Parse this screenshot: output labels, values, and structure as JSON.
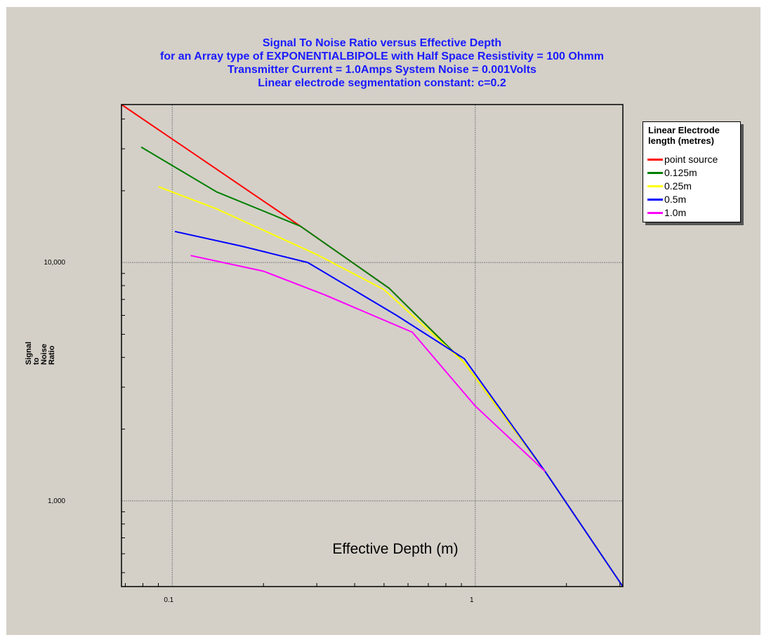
{
  "title_lines": [
    "Signal To Noise Ratio versus Effective Depth",
    "for an Array type of EXPONENTIALBIPOLE  with Half Space Resistivity = 100 Ohmm",
    "Transmitter Current = 1.0Amps  System Noise = 0.001Volts",
    "Linear electrode segmentation constant: c=0.2"
  ],
  "colors": {
    "title": "#1a1aff",
    "background": "#d4d0c8"
  },
  "chart_data": {
    "type": "line",
    "title": "Signal To Noise Ratio versus Effective Depth for an Array type of EXPONENTIALBIPOLE  with Half Space Resistivity = 100 Ohmm Transmitter Current = 1.0Amps  System Noise = 0.001Volts Linear electrode segmentation constant: c=0.2",
    "xlabel": "Effective Depth (m)",
    "ylabel": [
      "Signal",
      "to",
      "Noise",
      "Ratio"
    ],
    "x_scale": "log",
    "y_scale": "log",
    "xlim": [
      0.068,
      3.07
    ],
    "ylim": [
      437,
      46000
    ],
    "x_ticks": [
      {
        "value": 0.1,
        "label": "0.1"
      },
      {
        "value": 1,
        "label": "1"
      }
    ],
    "y_ticks": [
      {
        "value": 10000,
        "label": "10,000"
      },
      {
        "value": 1000,
        "label": "1,000"
      }
    ],
    "grid": true,
    "legend_title": "Linear Electrode length (metres)",
    "legend_title_lines": [
      "Linear Electrode",
      "length (metres)"
    ],
    "legend_position": "right",
    "series": [
      {
        "name": "point source",
        "color": "#ff0000",
        "points": [
          [
            0.068,
            46000
          ],
          [
            0.265,
            14200
          ],
          [
            0.52,
            7800
          ],
          [
            0.92,
            3800
          ],
          [
            1.7,
            1330
          ],
          [
            3.07,
            437
          ]
        ]
      },
      {
        "name": "0.125m",
        "color": "#008000",
        "points": [
          [
            0.079,
            30500
          ],
          [
            0.14,
            19800
          ],
          [
            0.265,
            14200
          ],
          [
            0.52,
            7800
          ],
          [
            0.92,
            3800
          ],
          [
            1.7,
            1330
          ],
          [
            3.07,
            437
          ]
        ]
      },
      {
        "name": "0.25m",
        "color": "#ffff00",
        "points": [
          [
            0.09,
            20800
          ],
          [
            0.14,
            16800
          ],
          [
            0.3,
            10800
          ],
          [
            0.5,
            7700
          ],
          [
            0.92,
            3800
          ],
          [
            1.7,
            1330
          ],
          [
            3.07,
            437
          ]
        ]
      },
      {
        "name": "0.5m",
        "color": "#0000ff",
        "points": [
          [
            0.102,
            13500
          ],
          [
            0.17,
            11700
          ],
          [
            0.28,
            10000
          ],
          [
            0.55,
            6000
          ],
          [
            0.92,
            3950
          ],
          [
            1.7,
            1330
          ],
          [
            3.07,
            437
          ]
        ]
      },
      {
        "name": "1.0m",
        "color": "#ff00ff",
        "points": [
          [
            0.115,
            10700
          ],
          [
            0.2,
            9200
          ],
          [
            0.32,
            7300
          ],
          [
            0.62,
            5100
          ],
          [
            1.0,
            2500
          ],
          [
            1.7,
            1330
          ]
        ]
      }
    ]
  }
}
